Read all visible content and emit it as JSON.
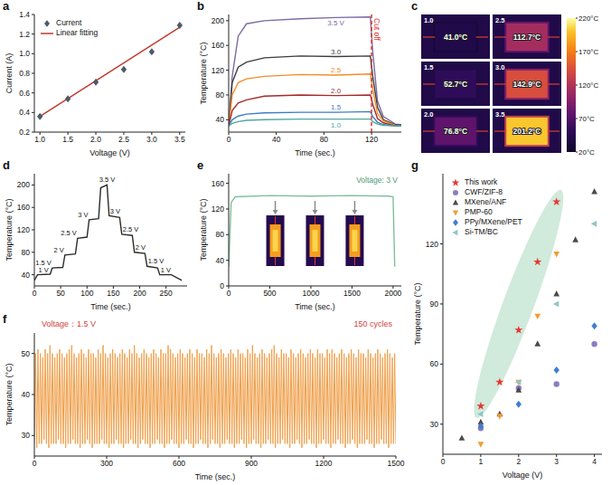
{
  "chart_data": [
    {
      "panel": "a",
      "type": "scatter",
      "x_label": "Voltage (V)",
      "y_label": "Current (A)",
      "legend": "upper left",
      "xlim": [
        0.9,
        3.6
      ],
      "xticks": [
        {
          "value": 1,
          "label": "1.0"
        },
        1.5,
        {
          "value": 2,
          "label": "2.0"
        },
        2.5,
        {
          "value": 3,
          "label": "3.0"
        },
        3.5
      ],
      "ylim": [
        0.2,
        1.4
      ],
      "yticks": [
        0.2,
        0.4,
        0.6,
        0.8,
        {
          "value": 1,
          "label": "1.0"
        },
        1.2,
        1.4
      ],
      "series": [
        {
          "name": "Current",
          "type": "scatter",
          "marker": "diamond",
          "color": "#4d5a6a",
          "x": [
            1,
            1.5,
            2,
            2.5,
            3,
            3.5
          ],
          "values": [
            0.36,
            0.54,
            0.71,
            0.84,
            1.02,
            1.29
          ]
        },
        {
          "name": "Linear fitting",
          "type": "line",
          "color": "#c0392b",
          "x": [
            1,
            3.5
          ],
          "values": [
            0.36,
            1.27
          ]
        }
      ]
    },
    {
      "panel": "b",
      "type": "line",
      "x_label": "Time (sec.)",
      "y_label": "Temperature (°C)",
      "xlim": [
        0,
        145
      ],
      "xticks": [
        0,
        40,
        80,
        120
      ],
      "ylim": [
        20,
        210
      ],
      "yticks": [
        40,
        80,
        120,
        160,
        200
      ],
      "cutoff": {
        "x": 120,
        "label": "Cut off"
      },
      "x": [
        0,
        3,
        8,
        15,
        30,
        60,
        90,
        119,
        121,
        125,
        130,
        140,
        145
      ],
      "series": [
        {
          "name": "3.5 V",
          "color": "#7b6aa3",
          "values": [
            30,
            110,
            175,
            195,
            200,
            203,
            205,
            206,
            150,
            70,
            45,
            33,
            32
          ]
        },
        {
          "name": "3.0",
          "color": "#3d3d3d",
          "values": [
            30,
            100,
            125,
            133,
            140,
            143,
            142,
            143,
            110,
            60,
            40,
            32,
            31
          ]
        },
        {
          "name": "2.5",
          "color": "#f28c28",
          "values": [
            30,
            80,
            100,
            106,
            110,
            113,
            112,
            114,
            90,
            50,
            38,
            31,
            30
          ]
        },
        {
          "name": "2.0",
          "color": "#a52a2a",
          "values": [
            30,
            55,
            67,
            72,
            78,
            80,
            79,
            80,
            65,
            42,
            35,
            30,
            30
          ]
        },
        {
          "name": "1.5",
          "color": "#3b7dc4",
          "values": [
            30,
            40,
            46,
            49,
            51,
            52,
            52,
            53,
            45,
            36,
            32,
            30,
            30
          ]
        },
        {
          "name": "1.0",
          "color": "#4fa89c",
          "values": [
            30,
            34,
            37,
            39,
            40,
            41,
            41,
            41,
            37,
            33,
            31,
            30,
            30
          ]
        }
      ]
    },
    {
      "panel": "c",
      "type": "thermal_image",
      "images": [
        {
          "voltage": "1.0",
          "temperature": 41.0,
          "label": "41.0°C"
        },
        {
          "voltage": "2.5",
          "temperature": 112.7,
          "label": "112.7°C"
        },
        {
          "voltage": "1.5",
          "temperature": 52.7,
          "label": "52.7°C"
        },
        {
          "voltage": "3.0",
          "temperature": 142.9,
          "label": "142.9°C"
        },
        {
          "voltage": "2.0",
          "temperature": 76.8,
          "label": "76.8°C"
        },
        {
          "voltage": "3.5",
          "temperature": 201.2,
          "label": "201.2°C"
        }
      ],
      "colorbar": {
        "range": [
          20,
          220
        ],
        "ticks": [
          {
            "value": 220,
            "label": "220°C"
          },
          {
            "value": 170,
            "label": "170°C"
          },
          {
            "value": 120,
            "label": "120°C"
          },
          {
            "value": 70,
            "label": "70°C"
          },
          {
            "value": 20,
            "label": "20°C"
          }
        ]
      }
    },
    {
      "panel": "d",
      "type": "line",
      "x_label": "Time (sec.)",
      "y_label": "Temperature (°C)",
      "xlim": [
        0,
        290
      ],
      "xticks": [
        0,
        50,
        100,
        150,
        200,
        250
      ],
      "ylim": [
        20,
        220
      ],
      "yticks": [
        40,
        80,
        120,
        160,
        200
      ],
      "x": [
        0,
        6,
        30,
        34,
        54,
        58,
        78,
        82,
        100,
        104,
        122,
        126,
        138,
        142,
        162,
        166,
        186,
        190,
        210,
        214,
        234,
        238,
        260,
        280
      ],
      "series": [
        {
          "name": "Temperature",
          "color": "#2b2b2b",
          "values": [
            30,
            40,
            41,
            52,
            53,
            75,
            77,
            105,
            107,
            138,
            140,
            195,
            200,
            145,
            142,
            112,
            110,
            80,
            78,
            55,
            52,
            40,
            40,
            30
          ],
          "point_labels": [
            null,
            "1 V",
            null,
            "1.5 V",
            null,
            "2 V",
            null,
            "2.5 V",
            null,
            "3 V",
            null,
            null,
            "3.5 V",
            "3 V",
            null,
            "2.5 V",
            null,
            "2 V",
            null,
            "1.5 V",
            null,
            "1 V",
            null,
            null
          ]
        }
      ]
    },
    {
      "panel": "e",
      "type": "line",
      "x_label": "Time (sec.)",
      "y_label": "Temperature (°C)",
      "xlim": [
        0,
        2100
      ],
      "xticks": [
        0,
        500,
        1000,
        1500,
        2000
      ],
      "ylim": [
        0,
        175
      ],
      "yticks": [
        0,
        40,
        80,
        120,
        160
      ],
      "annotations": [
        "Voltage: 3 V"
      ],
      "x": [
        0,
        30,
        80,
        500,
        1000,
        1500,
        1950,
        2000,
        2020
      ],
      "series": [
        {
          "name": "Temperature",
          "color": "#7fbf9c",
          "values": [
            30,
            130,
            139,
            141,
            140,
            141,
            140,
            139,
            30
          ]
        }
      ]
    },
    {
      "panel": "f",
      "type": "line",
      "x_label": "Time (sec.)",
      "y_label": "Temperature (°C)",
      "xlim": [
        0,
        1500
      ],
      "xticks": [
        0,
        300,
        600,
        900,
        1200,
        1500
      ],
      "ylim": [
        25,
        55
      ],
      "yticks": [
        30,
        40,
        50
      ],
      "annotations": [
        "Voltage：1.5 V",
        "150 cycles"
      ],
      "x": [
        0,
        5,
        10,
        15,
        20,
        25,
        30,
        35,
        40,
        45,
        50,
        55,
        60,
        65,
        70,
        75,
        80,
        85,
        90,
        95,
        100,
        105,
        110,
        115,
        120,
        125,
        130,
        135,
        140,
        145,
        150,
        155,
        160,
        165,
        170,
        175,
        180,
        185,
        190,
        195,
        200,
        205,
        210,
        215,
        220,
        225,
        230,
        235,
        240,
        245,
        250,
        255,
        260,
        265,
        270,
        275,
        280,
        285,
        290,
        295,
        300,
        305,
        310,
        315,
        320,
        325,
        330,
        335,
        340,
        345,
        350,
        355,
        360,
        365,
        370,
        375,
        380,
        385,
        390,
        395,
        400,
        405,
        410,
        415,
        420,
        425,
        430,
        435,
        440,
        445,
        450,
        455,
        460,
        465,
        470,
        475,
        480,
        485,
        490,
        495,
        500,
        505,
        510,
        515,
        520,
        525,
        530,
        535,
        540,
        545,
        550,
        555,
        560,
        565,
        570,
        575,
        580,
        585,
        590,
        595,
        600,
        605,
        610,
        615,
        620,
        625,
        630,
        635,
        640,
        645,
        650,
        655,
        660,
        665,
        670,
        675,
        680,
        685,
        690,
        695,
        700,
        705,
        710,
        715,
        720,
        725,
        730,
        735,
        740,
        745,
        750,
        755,
        760,
        765,
        770,
        775,
        780,
        785,
        790,
        795,
        800,
        805,
        810,
        815,
        820,
        825,
        830,
        835,
        840,
        845,
        850,
        855,
        860,
        865,
        870,
        875,
        880,
        885,
        890,
        895,
        900,
        905,
        910,
        915,
        920,
        925,
        930,
        935,
        940,
        945,
        950,
        955,
        960,
        965,
        970,
        975,
        980,
        985,
        990,
        995,
        1000,
        1005,
        1010,
        1015,
        1020,
        1025,
        1030,
        1035,
        1040,
        1045,
        1050,
        1055,
        1060,
        1065,
        1070,
        1075,
        1080,
        1085,
        1090,
        1095,
        1100,
        1105,
        1110,
        1115,
        1120,
        1125,
        1130,
        1135,
        1140,
        1145,
        1150,
        1155,
        1160,
        1165,
        1170,
        1175,
        1180,
        1185,
        1190,
        1195,
        1200,
        1205,
        1210,
        1215,
        1220,
        1225,
        1230,
        1235,
        1240,
        1245,
        1250,
        1255,
        1260,
        1265,
        1270,
        1275,
        1280,
        1285,
        1290,
        1295,
        1300,
        1305,
        1310,
        1315,
        1320,
        1325,
        1330,
        1335,
        1340,
        1345,
        1350,
        1355,
        1360,
        1365,
        1370,
        1375,
        1380,
        1385,
        1390,
        1395,
        1400,
        1405,
        1410,
        1415,
        1420,
        1425,
        1430,
        1435,
        1440,
        1445,
        1450,
        1455,
        1460,
        1465,
        1470,
        1475,
        1480,
        1485,
        1490,
        1495,
        1500
      ],
      "series": [
        {
          "name": "Temperature",
          "color": "#f0a04b",
          "values": [
            28,
            50,
            27,
            51,
            28,
            50,
            28,
            49,
            29,
            51,
            28,
            50,
            27,
            52,
            28,
            50,
            28,
            49,
            28,
            50,
            29,
            51,
            28,
            50,
            28,
            49,
            27,
            50,
            28,
            51,
            28,
            52,
            29,
            50,
            28,
            49,
            28,
            50,
            27,
            51,
            28,
            50,
            28,
            49,
            29,
            51,
            28,
            50,
            27,
            50,
            28,
            49,
            28,
            51,
            28,
            50,
            29,
            52,
            28,
            50,
            28,
            49,
            27,
            50,
            28,
            51,
            28,
            50,
            29,
            49,
            28,
            50,
            28,
            51,
            27,
            50,
            28,
            49,
            28,
            51,
            29,
            50,
            28,
            52,
            28,
            50,
            27,
            49,
            28,
            50,
            29,
            51,
            28,
            50,
            28,
            49,
            27,
            50,
            28,
            51,
            28,
            50,
            29,
            49,
            28,
            51,
            28,
            50,
            27,
            50,
            28,
            52,
            28,
            51,
            29,
            50,
            28,
            49,
            28,
            50,
            27,
            51,
            28,
            50,
            28,
            49,
            29,
            50,
            28,
            51,
            28,
            50,
            27,
            49,
            28,
            51,
            28,
            50,
            29,
            50,
            28,
            49,
            28,
            51,
            27,
            50,
            28,
            52,
            29,
            50,
            28,
            49,
            28,
            50,
            27,
            51,
            28,
            50,
            28,
            49,
            29,
            50,
            28,
            51,
            28,
            50,
            27,
            49,
            28,
            51,
            28,
            50,
            29,
            50,
            28,
            49,
            27,
            51,
            28,
            50,
            28,
            52,
            29,
            50,
            28,
            49,
            28,
            50,
            27,
            51,
            28,
            50,
            28,
            49,
            29,
            50,
            28,
            51,
            28,
            52,
            27,
            50,
            28,
            49,
            28,
            51,
            29,
            50,
            28,
            50,
            28,
            49,
            27,
            51,
            28,
            50,
            28,
            49,
            29,
            50,
            28,
            51,
            27,
            50,
            28,
            49,
            28,
            50,
            29,
            51,
            28,
            50,
            28,
            49,
            27,
            51,
            28,
            50,
            28,
            50,
            29,
            49,
            28,
            51,
            28,
            50,
            27,
            51,
            28,
            50,
            28,
            49,
            29,
            50,
            28,
            51,
            28,
            50,
            27,
            49,
            28,
            50,
            28,
            51,
            29,
            50,
            28,
            49,
            27,
            51,
            28,
            50,
            28,
            50,
            28,
            49,
            29,
            51,
            28,
            50,
            28,
            49,
            27,
            50,
            28,
            51,
            28,
            50,
            29,
            49,
            28,
            50,
            28,
            51,
            27,
            50,
            28,
            49,
            28,
            50,
            28
          ]
        }
      ]
    },
    {
      "panel": "g",
      "type": "scatter",
      "x_label": "Voltage (V)",
      "y_label": "Temperature (°C)",
      "legend": "upper left",
      "xlim": [
        0,
        4.2
      ],
      "xticks": [
        0,
        1,
        2,
        3,
        4
      ],
      "ylim": [
        15,
        155
      ],
      "yticks": [
        30,
        60,
        90,
        120
      ],
      "series": [
        {
          "name": "This work",
          "marker": "star",
          "color": "#e53935",
          "x": [
            1,
            1.5,
            2,
            2.5,
            3
          ],
          "values": [
            39,
            51,
            77,
            111,
            141
          ]
        },
        {
          "name": "CWF/ZIF-8",
          "marker": "circle",
          "color": "#8e7cc3",
          "x": [
            1,
            2,
            3,
            4
          ],
          "values": [
            28,
            48,
            50,
            70
          ]
        },
        {
          "name": "MXene/ANF",
          "marker": "triangle-up",
          "color": "#4a4a4a",
          "x": [
            0.5,
            1,
            1.5,
            2,
            2.5,
            3,
            3.5,
            4
          ],
          "values": [
            23,
            31,
            35,
            47,
            70,
            95,
            122,
            146
          ]
        },
        {
          "name": "PMP-60",
          "marker": "triangle-down",
          "color": "#f39c34",
          "x": [
            1,
            1.5,
            2,
            2.5,
            3
          ],
          "values": [
            20,
            34,
            51,
            84,
            115
          ]
        },
        {
          "name": "PPy/MXene/PET",
          "marker": "diamond",
          "color": "#3f7fd0",
          "x": [
            1,
            2,
            3,
            4
          ],
          "values": [
            29,
            40,
            57,
            79
          ]
        },
        {
          "name": "Si-TM/BC",
          "marker": "triangle-left",
          "color": "#8fc7c2",
          "x": [
            1,
            2,
            3,
            4
          ],
          "values": [
            35,
            51,
            90,
            130
          ]
        }
      ]
    }
  ]
}
